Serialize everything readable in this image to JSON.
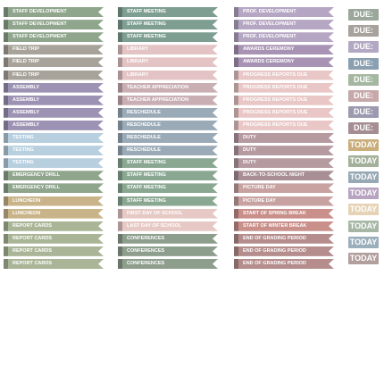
{
  "columns": [
    {
      "labels": [
        "STAFF DEVELOPMENT",
        "STAFF DEVELOPMENT",
        "STAFF DEVELOPMENT",
        "FIELD TRIP",
        "FIELD TRIP",
        "FIELD TRIP",
        "ASSEMBLY",
        "ASSEMBLY",
        "ASSEMBLY",
        "ASSEMBLY",
        "TESTING",
        "TESTING",
        "TESTING",
        "EMERGENCY DRILL",
        "EMERGENCY DRILL",
        "LUNCHEON",
        "LUNCHEON",
        "REPORT CARDS",
        "REPORT CARDS",
        "REPORT CARDS",
        "REPORT CARDS"
      ]
    },
    {
      "labels": [
        "STAFF MEETING",
        "STAFF MEETING",
        "STAFF MEETING",
        "LIBRARY",
        "LIBRARY",
        "LIBRARY",
        "TEACHER APPRECIATION",
        "TEACHER APPRECIATION",
        "RESCHEDULE",
        "RESCHEDULE",
        "RESCHEDULE",
        "RESCHEDULE",
        "STAFF MEETING",
        "STAFF MEETING",
        "STAFF MEETING",
        "STAFF MEETING",
        "FIRST DAY OF SCHOOL",
        "LAST DAY OF SCHOOL",
        "CONFERENCES",
        "CONFERENCES",
        "CONFERENCES"
      ]
    },
    {
      "labels": [
        "PROF. DEVELOPMENT",
        "PROF. DEVELOPMENT",
        "PROF. DEVELOPMENT",
        "AWARDS CEREMONY",
        "AWARDS CEREMONY",
        "PROGRESS REPORTS DUE",
        "PROGRESS REPORTS DUE",
        "PROGRESS REPORTS DUE",
        "PROGRESS REPORTS DUE",
        "PROGRESS REPORTS DUE",
        "DUTY",
        "DUTY",
        "DUTY",
        "BACK-TO-SCHOOL NIGHT",
        "PICTURE DAY",
        "PICTURE DAY",
        "START OF SPRING BREAK",
        "START OF WINTER BREAK",
        "END OF GRADING PERIOD",
        "END OF GRADING PERIOD",
        "END OF GRADING PERIOD"
      ]
    }
  ],
  "tabs": {
    "labels": [
      "DUE:",
      "DUE:",
      "DUE:",
      "DUE:",
      "DUE:",
      "DUE:",
      "DUE:",
      "DUE:",
      "TODAY",
      "TODAY",
      "TODAY",
      "TODAY",
      "TODAY",
      "TODAY",
      "TODAY",
      "TODAY"
    ]
  }
}
